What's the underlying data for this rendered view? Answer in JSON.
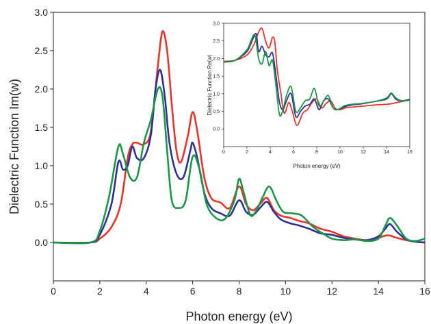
{
  "chart_data": [
    {
      "type": "line",
      "role": "main",
      "xlabel": "Photon energy (eV)",
      "ylabel": "Dielectric Function Im(w)",
      "xlim": [
        0,
        16
      ],
      "ylim": [
        -0.5,
        3.0
      ],
      "xticks": [
        0,
        2,
        4,
        6,
        8,
        10,
        12,
        14,
        16
      ],
      "yticks": [
        0.0,
        0.5,
        1.0,
        1.5,
        2.0,
        2.5,
        3.0
      ],
      "ytick_labels": [
        "0.0",
        "0.5",
        "1.0",
        "1.5",
        "2.0",
        "2.5",
        "3.0"
      ],
      "grid": false,
      "series": [
        {
          "color": "#e8332a",
          "x": [
            0,
            1.6,
            2.0,
            2.5,
            2.9,
            3.2,
            3.4,
            3.6,
            3.9,
            4.2,
            4.5,
            4.7,
            4.9,
            5.1,
            5.3,
            5.5,
            5.8,
            6.0,
            6.2,
            6.5,
            6.8,
            7.2,
            7.6,
            8.0,
            8.3,
            8.6,
            8.9,
            9.2,
            9.5,
            9.8,
            10.2,
            10.6,
            11.0,
            11.5,
            12.0,
            12.5,
            13.0,
            13.5,
            14.0,
            14.3,
            14.5,
            14.8,
            15.2,
            15.6,
            16.0
          ],
          "y": [
            0,
            0,
            0.05,
            0.2,
            0.5,
            1.1,
            1.28,
            1.3,
            1.28,
            1.45,
            2.3,
            2.75,
            2.5,
            1.8,
            1.2,
            1.05,
            1.4,
            1.7,
            1.45,
            0.85,
            0.58,
            0.52,
            0.45,
            0.73,
            0.5,
            0.42,
            0.5,
            0.58,
            0.42,
            0.35,
            0.32,
            0.28,
            0.25,
            0.18,
            0.14,
            0.08,
            0.05,
            0.03,
            0.06,
            0.09,
            0.09,
            0.06,
            0.03,
            0.01,
            0
          ]
        },
        {
          "color": "#2e3192",
          "x": [
            0,
            1.6,
            2.0,
            2.5,
            2.8,
            3.0,
            3.2,
            3.4,
            3.6,
            3.9,
            4.2,
            4.4,
            4.6,
            4.8,
            5.0,
            5.3,
            5.6,
            5.9,
            6.0,
            6.2,
            6.5,
            6.8,
            7.2,
            7.6,
            8.0,
            8.3,
            8.6,
            8.9,
            9.2,
            9.5,
            9.8,
            10.2,
            10.6,
            11.0,
            11.5,
            12.0,
            12.5,
            13.0,
            13.5,
            14.0,
            14.3,
            14.5,
            14.8,
            15.2,
            15.6,
            16.0
          ],
          "y": [
            0,
            0,
            0.1,
            0.5,
            1.05,
            0.95,
            1.0,
            1.25,
            1.1,
            1.1,
            1.4,
            2.0,
            2.25,
            1.9,
            1.3,
            0.9,
            0.85,
            1.2,
            1.3,
            1.1,
            0.65,
            0.45,
            0.38,
            0.35,
            0.55,
            0.4,
            0.36,
            0.45,
            0.53,
            0.4,
            0.3,
            0.25,
            0.22,
            0.18,
            0.12,
            0.1,
            0.06,
            0.04,
            0.03,
            0.08,
            0.18,
            0.24,
            0.14,
            0.04,
            0.01,
            0
          ]
        },
        {
          "color": "#1a9646",
          "x": [
            0,
            1.6,
            2.0,
            2.4,
            2.8,
            3.0,
            3.3,
            3.6,
            3.9,
            4.2,
            4.5,
            4.7,
            4.9,
            5.1,
            5.4,
            5.7,
            6.0,
            6.3,
            6.6,
            7.0,
            7.4,
            7.8,
            8.0,
            8.2,
            8.5,
            8.8,
            9.0,
            9.3,
            9.6,
            9.9,
            10.3,
            10.7,
            11.2,
            11.7,
            12.0,
            12.5,
            13.0,
            13.5,
            14.0,
            14.3,
            14.5,
            14.8,
            15.2,
            15.6,
            16.0
          ],
          "y": [
            0,
            0,
            0.15,
            0.6,
            1.25,
            1.15,
            0.85,
            0.85,
            1.3,
            1.6,
            2.0,
            1.9,
            1.2,
            0.55,
            0.45,
            0.55,
            1.12,
            0.95,
            0.5,
            0.32,
            0.31,
            0.55,
            0.83,
            0.65,
            0.35,
            0.45,
            0.58,
            0.73,
            0.55,
            0.4,
            0.38,
            0.35,
            0.2,
            0.1,
            0.05,
            0.03,
            0.04,
            0.02,
            0.05,
            0.22,
            0.32,
            0.22,
            0.05,
            0.02,
            0.05
          ]
        }
      ]
    },
    {
      "type": "line",
      "role": "inset",
      "xlabel": "Photon energy (eV)",
      "ylabel": "Dielectric Function Re(w)",
      "xlim": [
        0,
        16
      ],
      "ylim": [
        -0.5,
        3.0
      ],
      "xticks": [
        0,
        2,
        4,
        6,
        8,
        10,
        12,
        14,
        16
      ],
      "yticks": [
        0.0,
        0.5,
        1.0,
        1.5,
        2.0,
        2.5,
        3.0
      ],
      "ytick_labels": [
        "0.0",
        "0.5",
        "1.0",
        "1.5",
        "2.0",
        "2.5",
        "3.0"
      ],
      "grid": false,
      "series": [
        {
          "color": "#e8332a",
          "x": [
            0,
            1.0,
            2.0,
            2.6,
            3.0,
            3.3,
            3.6,
            3.9,
            4.2,
            4.4,
            4.6,
            4.9,
            5.2,
            5.6,
            5.9,
            6.3,
            6.8,
            7.2,
            7.6,
            8.0,
            8.4,
            8.8,
            9.2,
            9.6,
            10.0,
            10.5,
            11.0,
            12.0,
            13.0,
            14.0,
            14.5,
            15.0,
            16.0
          ],
          "y": [
            1.92,
            1.95,
            2.1,
            2.4,
            2.75,
            2.85,
            2.5,
            2.3,
            2.6,
            2.45,
            1.7,
            1.05,
            0.45,
            0.75,
            0.5,
            0.1,
            0.45,
            0.55,
            0.75,
            0.85,
            0.6,
            0.72,
            0.8,
            0.58,
            0.55,
            0.6,
            0.62,
            0.65,
            0.68,
            0.7,
            0.72,
            0.76,
            0.82
          ]
        },
        {
          "color": "#2e3192",
          "x": [
            0,
            1.0,
            2.0,
            2.5,
            2.8,
            3.0,
            3.3,
            3.6,
            3.9,
            4.2,
            4.5,
            4.8,
            5.1,
            5.4,
            5.8,
            6.2,
            6.6,
            7.0,
            7.4,
            7.8,
            8.2,
            8.6,
            9.0,
            9.4,
            9.8,
            10.4,
            11.0,
            12.0,
            13.0,
            14.0,
            14.4,
            14.8,
            15.3,
            16.0
          ],
          "y": [
            1.9,
            1.95,
            2.2,
            2.55,
            2.7,
            2.2,
            2.35,
            2.1,
            2.05,
            2.15,
            1.5,
            0.75,
            0.55,
            0.8,
            1.0,
            0.35,
            0.5,
            0.65,
            0.7,
            0.85,
            0.55,
            0.8,
            0.85,
            0.6,
            0.55,
            0.63,
            0.68,
            0.72,
            0.78,
            0.85,
            1.0,
            0.85,
            0.8,
            0.84
          ]
        },
        {
          "color": "#1a9646",
          "x": [
            0,
            1.0,
            2.0,
            2.4,
            2.7,
            3.0,
            3.3,
            3.6,
            3.9,
            4.2,
            4.5,
            4.8,
            5.1,
            5.4,
            5.8,
            6.2,
            6.6,
            7.0,
            7.4,
            7.8,
            8.2,
            8.6,
            9.0,
            9.4,
            9.8,
            10.4,
            11.0,
            12.0,
            13.0,
            14.0,
            14.4,
            14.8,
            15.3,
            16.0
          ],
          "y": [
            1.9,
            1.95,
            2.25,
            2.55,
            2.65,
            2.0,
            1.85,
            2.2,
            1.8,
            1.95,
            1.2,
            0.4,
            0.55,
            0.95,
            1.2,
            0.5,
            0.6,
            0.8,
            0.85,
            1.15,
            0.65,
            0.8,
            0.95,
            0.6,
            0.55,
            0.66,
            0.7,
            0.73,
            0.78,
            0.88,
            1.02,
            0.88,
            0.8,
            0.82
          ]
        }
      ]
    }
  ]
}
